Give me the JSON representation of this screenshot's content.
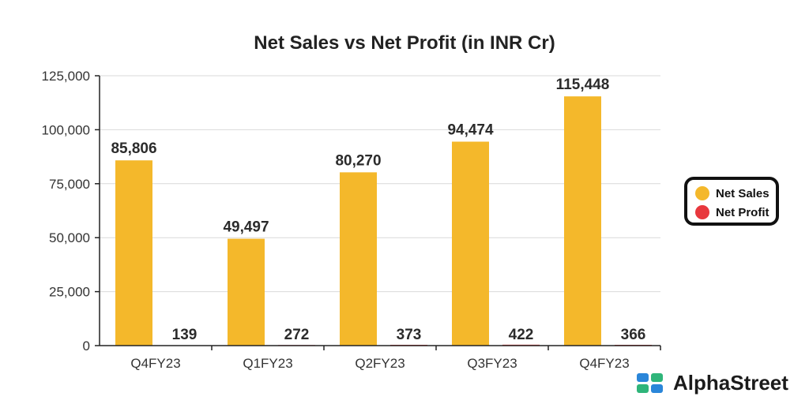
{
  "chart_data": {
    "type": "bar",
    "title": "Net Sales vs Net Profit (in INR Cr)",
    "categories": [
      "Q4FY23",
      "Q1FY23",
      "Q2FY23",
      "Q3FY23",
      "Q4FY23"
    ],
    "series": [
      {
        "name": "Net Sales",
        "color": "#F4B82B",
        "values": [
          85806,
          49497,
          80270,
          94474,
          115448
        ],
        "labels": [
          "85,806",
          "49,497",
          "80,270",
          "94,474",
          "115,448"
        ]
      },
      {
        "name": "Net Profit",
        "color": "#E8383D",
        "values": [
          139,
          272,
          373,
          422,
          366
        ],
        "labels": [
          "139",
          "272",
          "373",
          "422",
          "366"
        ]
      }
    ],
    "ylim": [
      0,
      125000
    ],
    "yticks": [
      "0",
      "25,000",
      "50,000",
      "75,000",
      "100,000",
      "125,000"
    ],
    "grid": true,
    "legend_position": "right"
  },
  "legend": {
    "items": [
      {
        "label": "Net Sales",
        "color": "#F4B82B"
      },
      {
        "label": "Net Profit",
        "color": "#E8383D"
      }
    ]
  },
  "brand": {
    "name": "AlphaStreet",
    "icon": "alphastreet-logo-icon"
  }
}
